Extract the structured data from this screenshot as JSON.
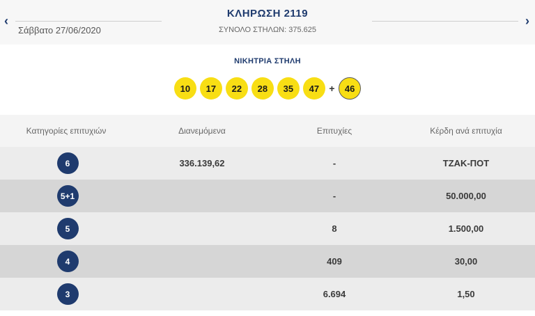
{
  "header": {
    "prev_icon": "chevron-left-icon",
    "next_icon": "chevron-right-icon",
    "prev_glyph": "‹",
    "next_glyph": "›",
    "date": "Σάββατο 27/06/2020",
    "title": "ΚΛΗΡΩΣΗ 2119",
    "total_columns": "ΣΥΝΟΛΟ ΣΤΗΛΩΝ: 375.625"
  },
  "winning": {
    "label": "ΝΙΚΗΤΡΙΑ ΣΤΗΛΗ",
    "numbers": [
      "10",
      "17",
      "22",
      "28",
      "35",
      "47"
    ],
    "plus": "+",
    "joker": "46",
    "ball_color": "#f8de14"
  },
  "table": {
    "headers": [
      "Κατηγορίες επιτυχιών",
      "Διανεμόμενα",
      "Επιτυχίες",
      "Κέρδη ανά επιτυχία"
    ],
    "rows": [
      {
        "category": "6",
        "distributed": "336.139,62",
        "winners": "-",
        "prize": "ΤΖΑΚ-ΠΟΤ"
      },
      {
        "category": "5+1",
        "distributed": "",
        "winners": "-",
        "prize": "50.000,00"
      },
      {
        "category": "5",
        "distributed": "",
        "winners": "8",
        "prize": "1.500,00"
      },
      {
        "category": "4",
        "distributed": "",
        "winners": "409",
        "prize": "30,00"
      },
      {
        "category": "3",
        "distributed": "",
        "winners": "6.694",
        "prize": "1,50"
      }
    ],
    "badge_color": "#1f3b6e"
  }
}
